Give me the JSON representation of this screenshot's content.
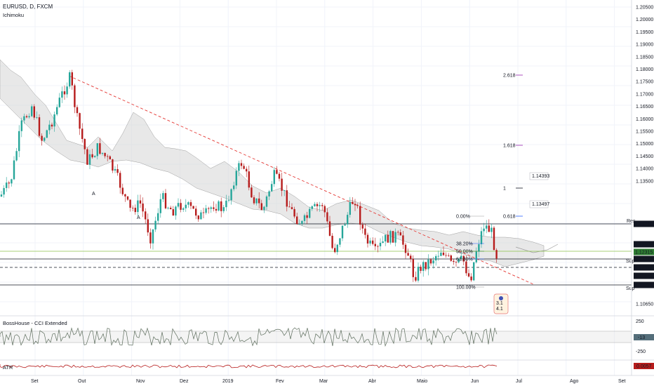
{
  "header": {
    "symbol": "EURUSD, D, FXCM",
    "indicator": "Ichimoku"
  },
  "subpanes": {
    "cci_title": "BossHouse - CCI Extended",
    "atr_title": "ATR",
    "cci_ticks": [
      "250",
      "-250"
    ],
    "cci_value": "-13",
    "atr_value": "0.0057"
  },
  "colors": {
    "up": "#26a69a",
    "down": "#b71c1c",
    "cloud": "#d6d6d6",
    "trendline": "#e53935",
    "fib": "#2962ff",
    "extension": "#9c27b0",
    "support_label": "#2e7d32",
    "resistance_label": "#e53935"
  },
  "chart_data": {
    "type": "candlestick",
    "symbol": "EURUSD",
    "timeframe": "D",
    "source": "FXCM",
    "y_axis": {
      "range": [
        1.1065,
        1.2055
      ],
      "ticks": [
        "1.20500",
        "1.20000",
        "1.19500",
        "1.19000",
        "1.18500",
        "1.18000",
        "1.17500",
        "1.17000",
        "1.16500",
        "1.16000",
        "1.15500",
        "1.15000",
        "1.14500",
        "1.14000",
        "1.13500",
        "1.10650"
      ]
    },
    "x_axis": {
      "ticks": [
        "Set",
        "Out",
        "Nov",
        "Dez",
        "2019",
        "Fev",
        "Mar",
        "Abr",
        "Maio",
        "Jun",
        "Jul",
        "Ago",
        "Set"
      ]
    },
    "price_tags": [
      {
        "value": "1.13219",
        "color": "#131722"
      },
      {
        "value": "1.12507",
        "color": "#131722"
      },
      {
        "value": "1.12315",
        "color": "#2e7d32"
      },
      {
        "value": "1.12274",
        "color": "#131722"
      },
      {
        "value": "1.12112",
        "color": "#131722"
      },
      {
        "value": "1.11847",
        "color": "#131722"
      },
      {
        "value": "1.11256",
        "color": "#131722"
      }
    ],
    "levels": [
      {
        "name": "Res",
        "value": 1.13219
      },
      {
        "name": "Sup",
        "value": 1.12274
      },
      {
        "name": "Sup",
        "value": 1.11256
      }
    ],
    "fibonacci": {
      "retracements": [
        "0.00%",
        "38.20%",
        "50.00%",
        "61.80%",
        "100.00%"
      ],
      "extensions": [
        {
          "ratio": "2.618"
        },
        {
          "ratio": "1.618"
        },
        {
          "ratio": "1",
          "price": "1.14393"
        },
        {
          "ratio": "0.618",
          "price": "1.13497"
        }
      ]
    },
    "markers": [
      "A",
      "A"
    ],
    "badge_values": [
      "3.1",
      "4.1"
    ]
  }
}
